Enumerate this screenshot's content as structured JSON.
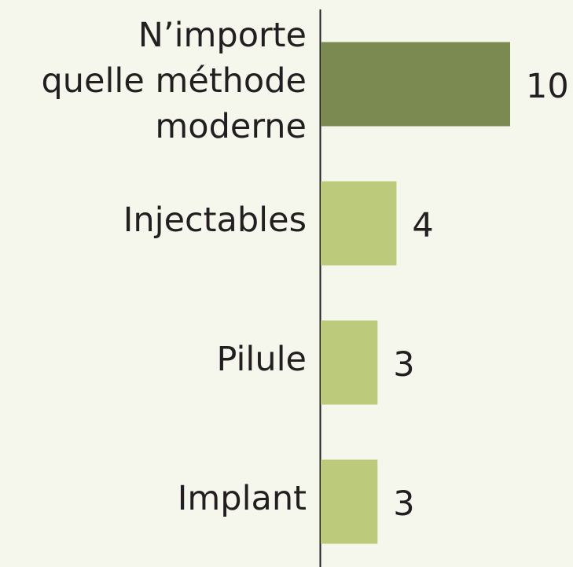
{
  "chart_data": {
    "type": "bar",
    "orientation": "horizontal",
    "categories": [
      "N’importe\nquelle méthode\nmoderne",
      "Injectables",
      "Pilule",
      "Implant"
    ],
    "values": [
      10,
      4,
      3,
      3
    ],
    "colors": [
      "#7a8a50",
      "#bccb7b",
      "#bccb7b",
      "#bccb7b"
    ]
  }
}
